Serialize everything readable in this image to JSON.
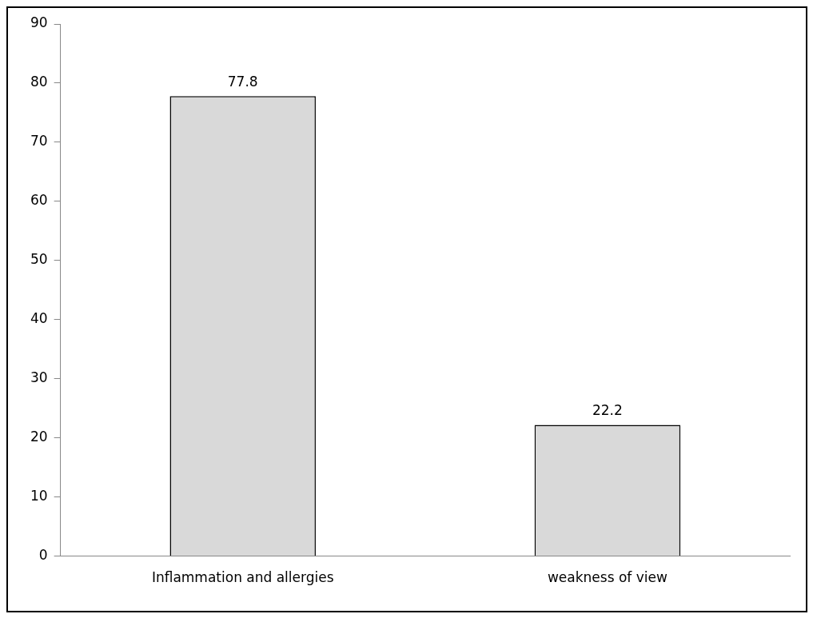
{
  "chart_data": {
    "type": "bar",
    "categories": [
      "Inflammation and allergies",
      "weakness of view"
    ],
    "values": [
      77.8,
      22.2
    ],
    "color": "#d9d9d9",
    "ylim": [
      0,
      90
    ],
    "yticks": [
      0,
      10,
      20,
      30,
      40,
      50,
      60,
      70,
      80,
      90
    ],
    "grid": false,
    "legend": false,
    "data_labels": true
  }
}
